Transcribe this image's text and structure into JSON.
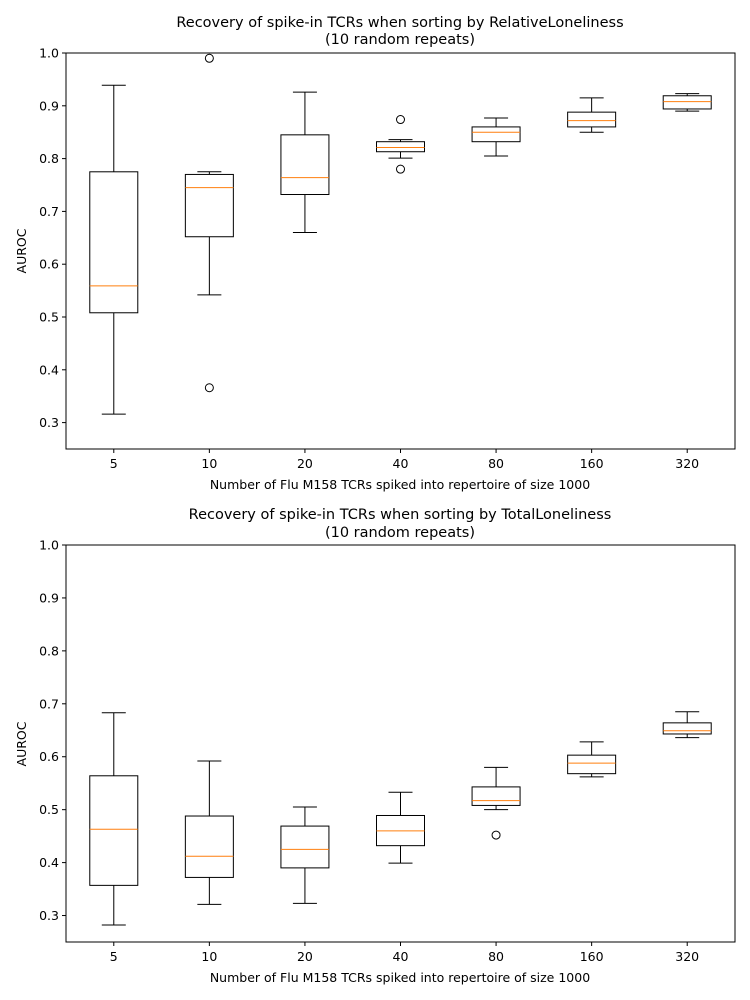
{
  "chart_data": [
    {
      "type": "boxplot",
      "title": [
        "Recovery of spike-in TCRs when sorting by RelativeLoneliness",
        "(10 random repeats)"
      ],
      "xlabel": "Number of Flu M158 TCRs spiked into repertoire of size 1000",
      "ylabel": "AUROC",
      "ylim": [
        0.25,
        1.0
      ],
      "yticks": [
        "0.3",
        "0.4",
        "0.5",
        "0.6",
        "0.7",
        "0.8",
        "0.9",
        "1.0"
      ],
      "categories": [
        "5",
        "10",
        "20",
        "40",
        "80",
        "160",
        "320"
      ],
      "boxes": [
        {
          "whislo": 0.316,
          "q1": 0.508,
          "med": 0.559,
          "q3": 0.775,
          "whishi": 0.939,
          "fliers": []
        },
        {
          "whislo": 0.542,
          "q1": 0.652,
          "med": 0.745,
          "q3": 0.77,
          "whishi": 0.775,
          "fliers": [
            0.99,
            0.366
          ]
        },
        {
          "whislo": 0.66,
          "q1": 0.732,
          "med": 0.764,
          "q3": 0.845,
          "whishi": 0.926,
          "fliers": []
        },
        {
          "whislo": 0.801,
          "q1": 0.813,
          "med": 0.821,
          "q3": 0.832,
          "whishi": 0.836,
          "fliers": [
            0.874,
            0.78
          ]
        },
        {
          "whislo": 0.805,
          "q1": 0.832,
          "med": 0.85,
          "q3": 0.86,
          "whishi": 0.877,
          "fliers": []
        },
        {
          "whislo": 0.85,
          "q1": 0.86,
          "med": 0.872,
          "q3": 0.888,
          "whishi": 0.915,
          "fliers": []
        },
        {
          "whislo": 0.89,
          "q1": 0.894,
          "med": 0.908,
          "q3": 0.919,
          "whishi": 0.923,
          "fliers": []
        }
      ],
      "colors": {
        "box": "#000000",
        "median": "#ff7f0e"
      }
    },
    {
      "type": "boxplot",
      "title": [
        "Recovery of spike-in TCRs when sorting by TotalLoneliness",
        "(10 random repeats)"
      ],
      "xlabel": "Number of Flu M158 TCRs spiked into repertoire of size 1000",
      "ylabel": "AUROC",
      "ylim": [
        0.25,
        1.0
      ],
      "yticks": [
        "0.3",
        "0.4",
        "0.5",
        "0.6",
        "0.7",
        "0.8",
        "0.9",
        "1.0"
      ],
      "categories": [
        "5",
        "10",
        "20",
        "40",
        "80",
        "160",
        "320"
      ],
      "boxes": [
        {
          "whislo": 0.282,
          "q1": 0.357,
          "med": 0.463,
          "q3": 0.564,
          "whishi": 0.683,
          "fliers": []
        },
        {
          "whislo": 0.321,
          "q1": 0.372,
          "med": 0.412,
          "q3": 0.488,
          "whishi": 0.592,
          "fliers": []
        },
        {
          "whislo": 0.323,
          "q1": 0.39,
          "med": 0.425,
          "q3": 0.469,
          "whishi": 0.505,
          "fliers": []
        },
        {
          "whislo": 0.399,
          "q1": 0.432,
          "med": 0.46,
          "q3": 0.489,
          "whishi": 0.533,
          "fliers": []
        },
        {
          "whislo": 0.5,
          "q1": 0.508,
          "med": 0.517,
          "q3": 0.543,
          "whishi": 0.58,
          "fliers": [
            0.452
          ]
        },
        {
          "whislo": 0.562,
          "q1": 0.568,
          "med": 0.588,
          "q3": 0.603,
          "whishi": 0.628,
          "fliers": []
        },
        {
          "whislo": 0.636,
          "q1": 0.643,
          "med": 0.649,
          "q3": 0.664,
          "whishi": 0.685,
          "fliers": []
        }
      ],
      "colors": {
        "box": "#000000",
        "median": "#ff7f0e"
      }
    }
  ]
}
